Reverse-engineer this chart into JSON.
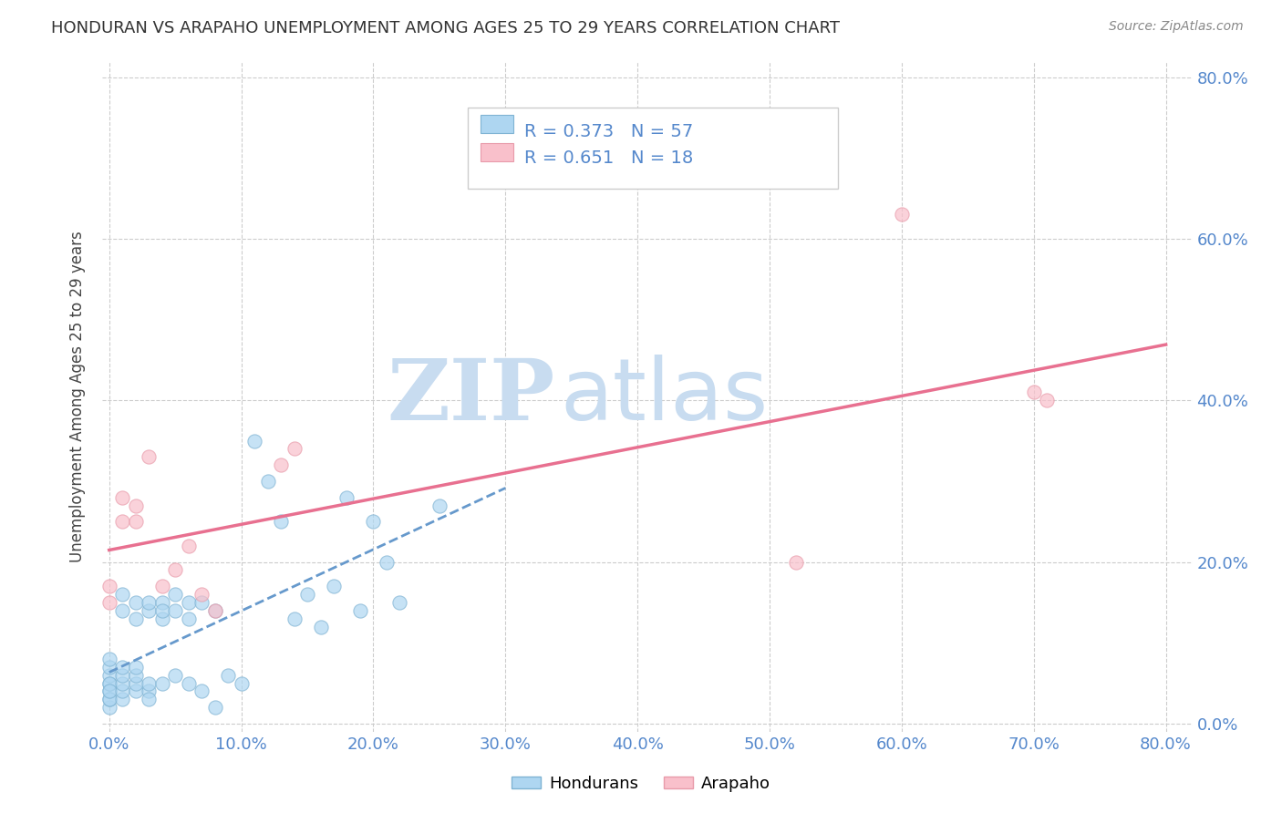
{
  "title": "HONDURAN VS ARAPAHO UNEMPLOYMENT AMONG AGES 25 TO 29 YEARS CORRELATION CHART",
  "source": "Source: ZipAtlas.com",
  "ylabel": "Unemployment Among Ages 25 to 29 years",
  "xlim": [
    -0.005,
    0.82
  ],
  "ylim": [
    -0.01,
    0.82
  ],
  "xticks": [
    0.0,
    0.1,
    0.2,
    0.3,
    0.4,
    0.5,
    0.6,
    0.7,
    0.8
  ],
  "yticks": [
    0.0,
    0.2,
    0.4,
    0.6,
    0.8
  ],
  "blue_scatter_color": "#AED6F1",
  "blue_edge_color": "#7FB3D3",
  "pink_scatter_color": "#F9C0CB",
  "pink_edge_color": "#E89BAA",
  "blue_line_color": "#6699CC",
  "pink_line_color": "#E87090",
  "tick_color": "#5588CC",
  "grid_color": "#CCCCCC",
  "watermark_zip": "ZIP",
  "watermark_atlas": "atlas",
  "watermark_color": "#C8DCF0",
  "background_color": "#FFFFFF",
  "honduran_x": [
    0.0,
    0.0,
    0.0,
    0.0,
    0.0,
    0.0,
    0.0,
    0.0,
    0.0,
    0.0,
    0.01,
    0.01,
    0.01,
    0.01,
    0.01,
    0.01,
    0.01,
    0.02,
    0.02,
    0.02,
    0.02,
    0.02,
    0.02,
    0.03,
    0.03,
    0.03,
    0.03,
    0.03,
    0.04,
    0.04,
    0.04,
    0.04,
    0.05,
    0.05,
    0.05,
    0.06,
    0.06,
    0.06,
    0.07,
    0.07,
    0.08,
    0.08,
    0.09,
    0.1,
    0.11,
    0.12,
    0.13,
    0.14,
    0.15,
    0.16,
    0.17,
    0.18,
    0.19,
    0.2,
    0.21,
    0.22,
    0.25
  ],
  "honduran_y": [
    0.02,
    0.03,
    0.04,
    0.05,
    0.06,
    0.07,
    0.08,
    0.05,
    0.03,
    0.04,
    0.03,
    0.04,
    0.05,
    0.06,
    0.07,
    0.14,
    0.16,
    0.04,
    0.05,
    0.06,
    0.07,
    0.13,
    0.15,
    0.04,
    0.05,
    0.14,
    0.15,
    0.03,
    0.05,
    0.13,
    0.15,
    0.14,
    0.06,
    0.14,
    0.16,
    0.05,
    0.13,
    0.15,
    0.04,
    0.15,
    0.02,
    0.14,
    0.06,
    0.05,
    0.35,
    0.3,
    0.25,
    0.13,
    0.16,
    0.12,
    0.17,
    0.28,
    0.14,
    0.25,
    0.2,
    0.15,
    0.27
  ],
  "arapaho_x": [
    0.0,
    0.0,
    0.01,
    0.01,
    0.02,
    0.02,
    0.03,
    0.04,
    0.05,
    0.06,
    0.07,
    0.08,
    0.13,
    0.14,
    0.52,
    0.6,
    0.7,
    0.71
  ],
  "arapaho_y": [
    0.15,
    0.17,
    0.25,
    0.28,
    0.25,
    0.27,
    0.33,
    0.17,
    0.19,
    0.22,
    0.16,
    0.14,
    0.32,
    0.34,
    0.2,
    0.63,
    0.41,
    0.4
  ]
}
